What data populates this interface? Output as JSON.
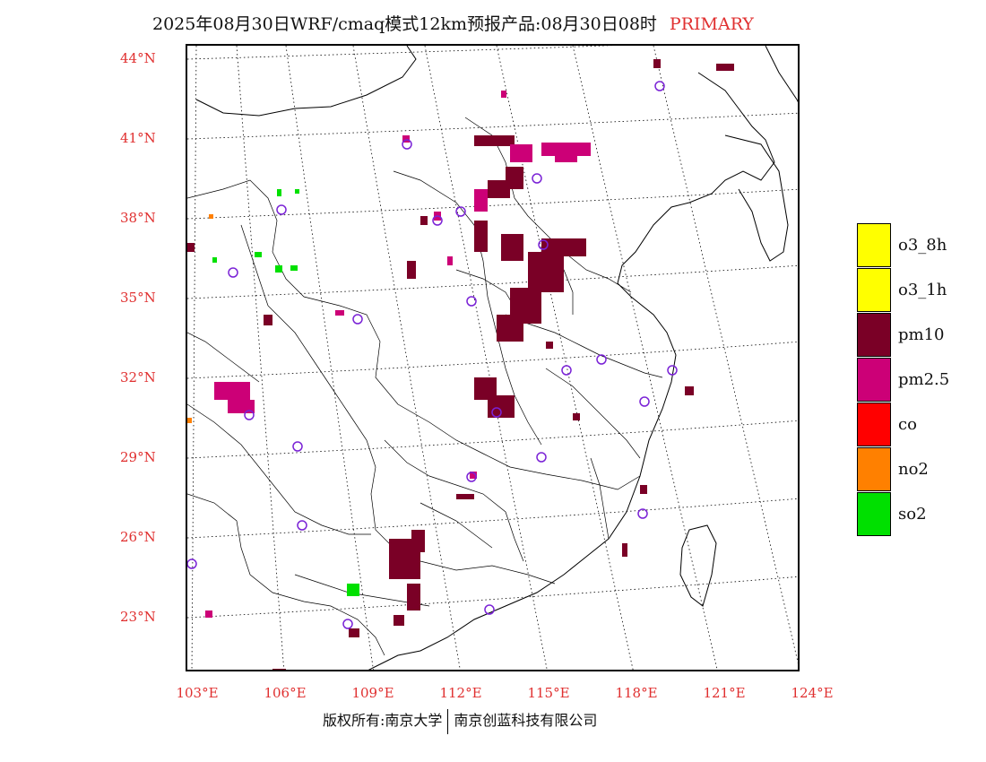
{
  "title": {
    "text": "2025年08月30日WRF/cmaq模式12km预报产品:08月30日08时",
    "tag": "PRIMARY",
    "tag_color": "#e03030"
  },
  "latitude_labels": [
    "44°N",
    "41°N",
    "38°N",
    "35°N",
    "32°N",
    "29°N",
    "26°N",
    "23°N"
  ],
  "longitude_labels": [
    "103°E",
    "106°E",
    "109°E",
    "112°E",
    "115°E",
    "118°E",
    "121°E",
    "124°E"
  ],
  "legend": [
    {
      "label": "o3_8h",
      "color": "#ffff00"
    },
    {
      "label": "o3_1h",
      "color": "#ffff00"
    },
    {
      "label": "pm10",
      "color": "#7a0026"
    },
    {
      "label": "pm2.5",
      "color": "#cc0077"
    },
    {
      "label": "co",
      "color": "#ff0000"
    },
    {
      "label": "no2",
      "color": "#ff8000"
    },
    {
      "label": "so2",
      "color": "#00e000"
    }
  ],
  "footer": {
    "left": "版权所有:南京大学",
    "right": "南京创蓝科技有限公司"
  },
  "icons": {
    "station_marker": "station-circle-icon"
  }
}
